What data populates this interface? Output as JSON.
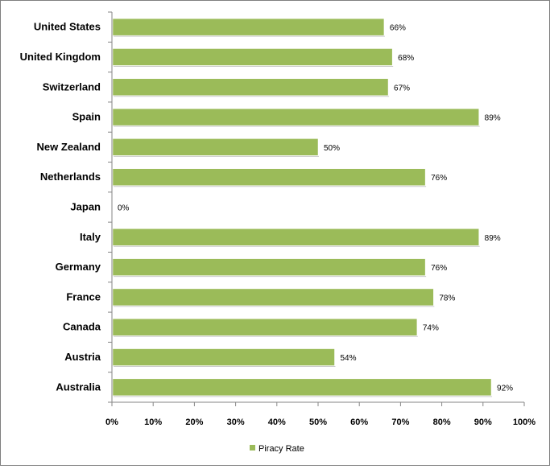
{
  "chart_data": {
    "type": "bar",
    "orientation": "horizontal",
    "categories": [
      "United States",
      "United Kingdom",
      "Switzerland",
      "Spain",
      "New Zealand",
      "Netherlands",
      "Japan",
      "Italy",
      "Germany",
      "France",
      "Canada",
      "Austria",
      "Australia"
    ],
    "series": [
      {
        "name": "Piracy Rate",
        "values": [
          66,
          68,
          67,
          89,
          50,
          76,
          0,
          89,
          76,
          78,
          74,
          54,
          92
        ],
        "color": "#9BBB59"
      }
    ],
    "value_labels": [
      "66%",
      "68%",
      "67%",
      "89%",
      "50%",
      "76%",
      "0%",
      "89%",
      "76%",
      "78%",
      "74%",
      "54%",
      "92%"
    ],
    "x_ticks": [
      "0%",
      "10%",
      "20%",
      "30%",
      "40%",
      "50%",
      "60%",
      "70%",
      "80%",
      "90%",
      "100%"
    ],
    "xlim": [
      0,
      100
    ],
    "grid": false,
    "legend": {
      "position": "bottom",
      "entries": [
        "Piracy Rate"
      ]
    }
  }
}
